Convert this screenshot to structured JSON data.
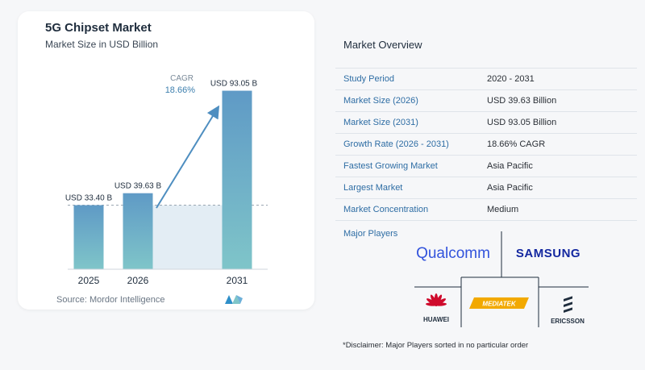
{
  "chart_data": {
    "type": "bar",
    "title": "5G Chipset Market",
    "subtitle": "Market Size in USD Billion",
    "categories": [
      "2025",
      "2026",
      "2031"
    ],
    "values": [
      33.4,
      39.63,
      93.05
    ],
    "data_labels": [
      "USD 33.40 B",
      "USD 39.63 B",
      "USD 93.05 B"
    ],
    "cagr_label": "CAGR",
    "cagr_value": "18.66%",
    "ylim": [
      0,
      100
    ],
    "grid": false,
    "colors": {
      "bar_top": "#5f9ac6",
      "bar_bottom": "#7fc5c9",
      "arrow": "#4e8ec0",
      "band": "#e3edf4"
    }
  },
  "source": "Source:  Mordor Intelligence",
  "overview": {
    "title": "Market Overview",
    "rows": [
      {
        "key": "Study Period",
        "value": "2020 - 2031"
      },
      {
        "key": "Market Size (2026)",
        "value": "USD 39.63 Billion"
      },
      {
        "key": "Market Size (2031)",
        "value": "USD 93.05 Billion"
      },
      {
        "key": "Growth Rate (2026 - 2031)",
        "value": "18.66% CAGR"
      },
      {
        "key": "Fastest Growing Market",
        "value": "Asia Pacific"
      },
      {
        "key": "Largest Market",
        "value": "Asia Pacific"
      },
      {
        "key": "Market Concentration",
        "value": "Medium"
      }
    ]
  },
  "players": {
    "title": "Major Players",
    "qualcomm": "Qualcomm",
    "samsung": "SAMSUNG",
    "huawei": "HUAWEI",
    "mediatek": "MEDIATEK",
    "ericsson": "ERICSSON"
  },
  "disclaimer": "*Disclaimer: Major Players sorted in no particular order",
  "colors": {
    "accent": "#2e6da4",
    "qualcomm": "#3253dc",
    "samsung": "#1428a0",
    "huawei": "#cf0a2c",
    "mediatek": "#f2a900"
  }
}
